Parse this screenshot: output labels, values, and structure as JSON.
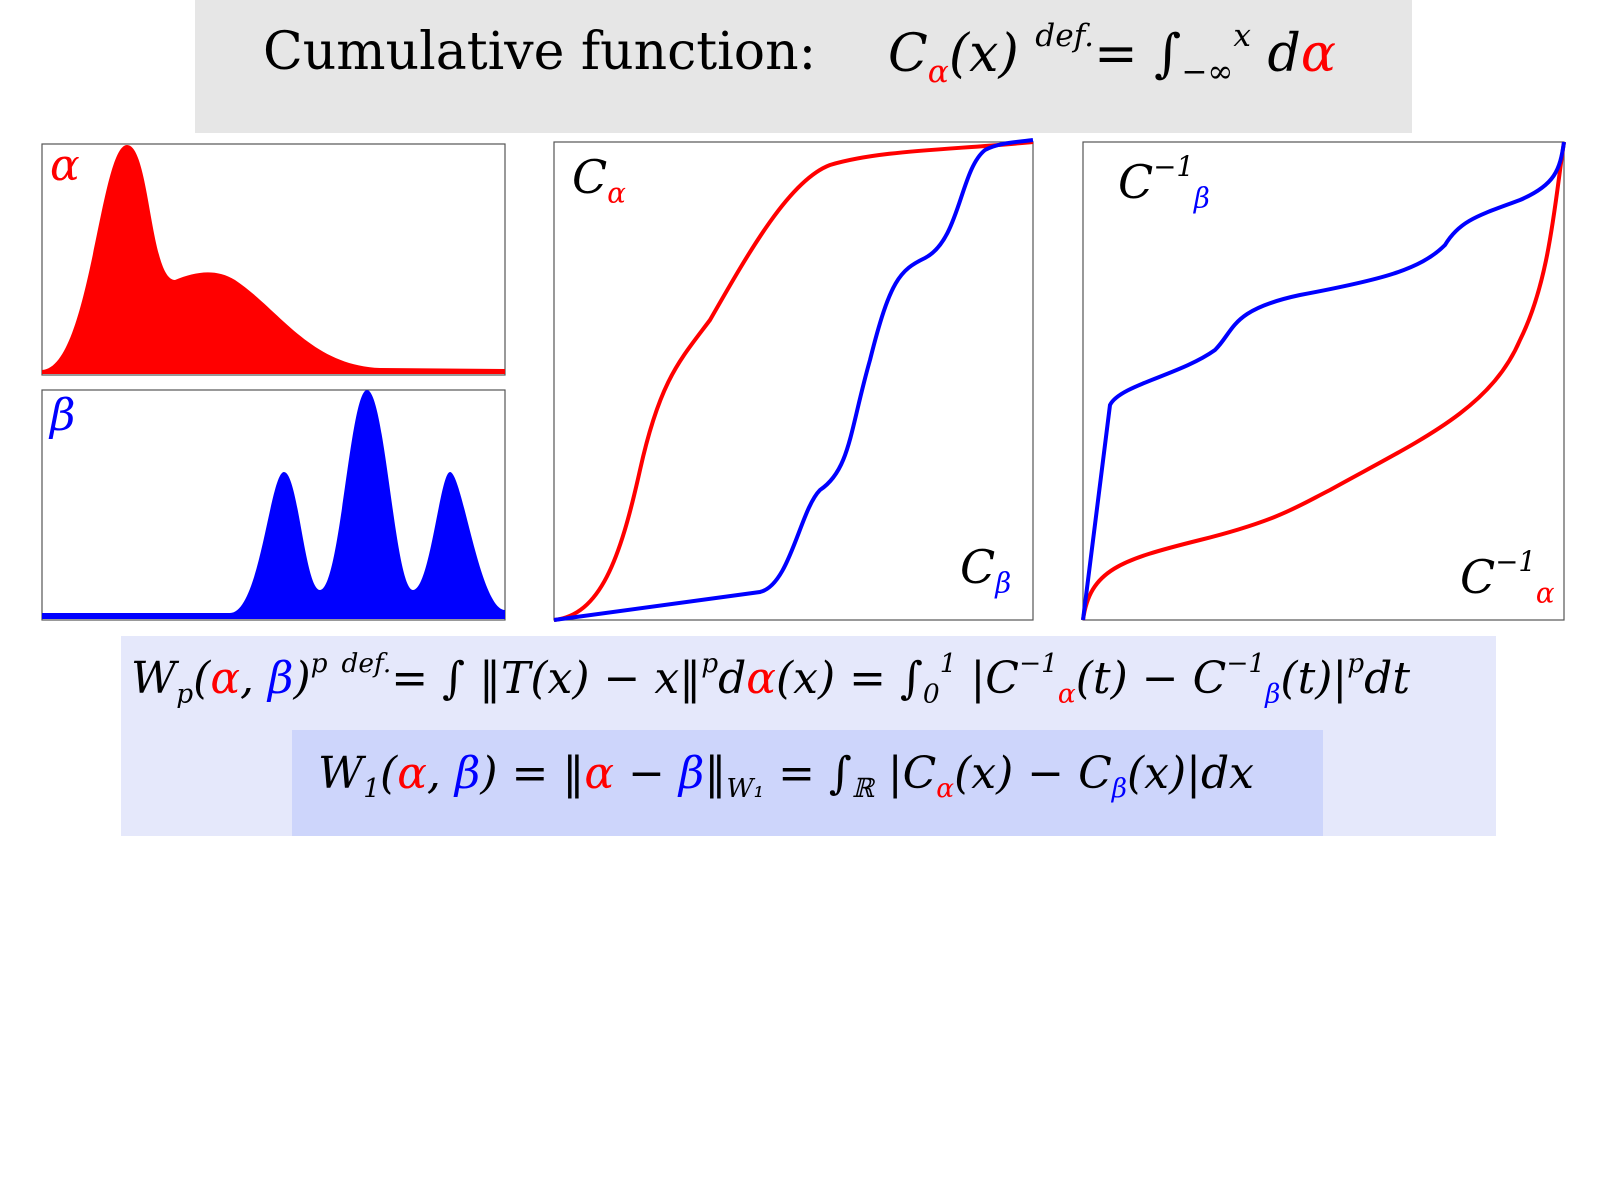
{
  "header": {
    "title": "Cumulative function:",
    "formula": [
      {
        "text": "C"
      },
      {
        "text": "α",
        "color": "red",
        "style": "sub"
      },
      {
        "text": "(x) "
      },
      {
        "text": "def.",
        "style": "sup"
      },
      {
        "text": "= ∫"
      },
      {
        "text": "−∞",
        "style": "sub"
      },
      {
        "text": "x",
        "style": "sup"
      },
      {
        "text": " d"
      },
      {
        "text": "α",
        "color": "red"
      }
    ]
  },
  "plots": [
    {
      "labels": [
        [
          {
            "text": "α",
            "color": "red"
          }
        ]
      ]
    },
    {
      "labels": [
        [
          {
            "text": "β",
            "color": "blue"
          }
        ]
      ]
    },
    {
      "labels": [
        [
          {
            "text": "C"
          },
          {
            "text": "α",
            "color": "red",
            "style": "sub"
          }
        ],
        [
          {
            "text": "C"
          },
          {
            "text": "β",
            "color": "blue",
            "style": "sub"
          }
        ]
      ]
    },
    {
      "labels": [
        [
          {
            "text": "C"
          },
          {
            "text": "−1",
            "style": "sup"
          },
          {
            "text": "β",
            "color": "blue",
            "style": "sub"
          }
        ],
        [
          {
            "text": "C"
          },
          {
            "text": "−1",
            "style": "sup"
          },
          {
            "text": "α",
            "color": "red",
            "style": "sub"
          }
        ]
      ]
    }
  ],
  "formulas": [
    [
      {
        "text": "W"
      },
      {
        "text": "p",
        "style": "sub"
      },
      {
        "text": "("
      },
      {
        "text": "α",
        "color": "red"
      },
      {
        "text": ", "
      },
      {
        "text": "β",
        "color": "blue"
      },
      {
        "text": ")"
      },
      {
        "text": "p",
        "style": "sup"
      },
      {
        "text": " "
      },
      {
        "text": "def.",
        "style": "sup"
      },
      {
        "text": "= ∫ ‖T(x) − x‖"
      },
      {
        "text": "p",
        "style": "sup"
      },
      {
        "text": "d"
      },
      {
        "text": "α",
        "color": "red"
      },
      {
        "text": "(x) = ∫"
      },
      {
        "text": "0",
        "style": "sub"
      },
      {
        "text": "1",
        "style": "sup"
      },
      {
        "text": " |C"
      },
      {
        "text": "−1",
        "style": "sup"
      },
      {
        "text": "α",
        "color": "red",
        "style": "sub"
      },
      {
        "text": "(t) − C"
      },
      {
        "text": "−1",
        "style": "sup"
      },
      {
        "text": "β",
        "color": "blue",
        "style": "sub"
      },
      {
        "text": "(t)|"
      },
      {
        "text": "p",
        "style": "sup"
      },
      {
        "text": "dt"
      }
    ],
    [
      {
        "text": "W"
      },
      {
        "text": "1",
        "style": "sub"
      },
      {
        "text": "("
      },
      {
        "text": "α",
        "color": "red"
      },
      {
        "text": ", "
      },
      {
        "text": "β",
        "color": "blue"
      },
      {
        "text": ") = ‖"
      },
      {
        "text": "α",
        "color": "red"
      },
      {
        "text": " − "
      },
      {
        "text": "β",
        "color": "blue"
      },
      {
        "text": "‖"
      },
      {
        "text": "W₁",
        "style": "sub"
      },
      {
        "text": " = ∫"
      },
      {
        "text": "ℝ",
        "style": "sub"
      },
      {
        "text": " |C"
      },
      {
        "text": "α",
        "color": "red",
        "style": "sub"
      },
      {
        "text": "(x) − C"
      },
      {
        "text": "β",
        "color": "blue",
        "style": "sub"
      },
      {
        "text": "(x)|dx"
      }
    ]
  ]
}
